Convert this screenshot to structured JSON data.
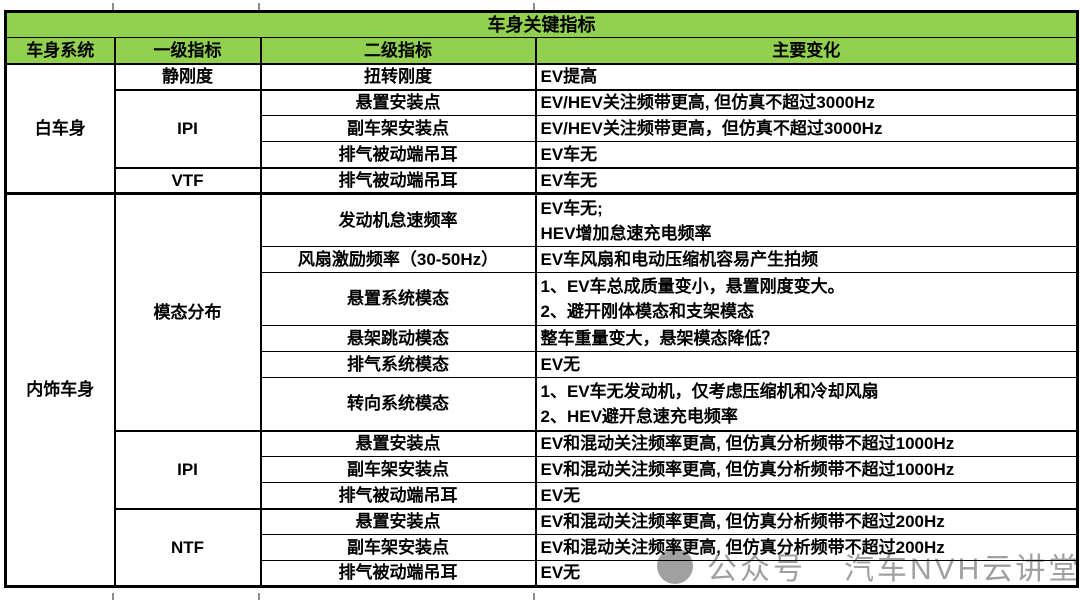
{
  "colors": {
    "header_green": "#92d050",
    "border_black": "#000000",
    "watermark_gray": "#808080"
  },
  "watermark": {
    "icon": "circle-logo",
    "label_1": "公众号",
    "label_2": "汽车NVH云讲堂"
  },
  "chart_data": {
    "type": "table",
    "title": "车身关键指标",
    "columns": [
      "车身系统",
      "一级指标",
      "二级指标",
      "主要变化"
    ],
    "merged_system_groups": [
      {
        "label": "白车身",
        "row_count": 5
      },
      {
        "label": "内饰车身",
        "row_count": 12
      }
    ],
    "merged_level1_groups": [
      {
        "label": "静刚度",
        "row_count": 1
      },
      {
        "label": "IPI",
        "row_count": 3
      },
      {
        "label": "VTF",
        "row_count": 1
      },
      {
        "label": "模态分布",
        "row_count": 6
      },
      {
        "label": "IPI",
        "row_count": 3
      },
      {
        "label": "NTF",
        "row_count": 3
      }
    ],
    "rows": [
      {
        "sys": "白车身",
        "lv1": "静刚度",
        "lv2": "扭转刚度",
        "chg": "EV提高"
      },
      {
        "lv1": "IPI",
        "lv2": "悬置安装点",
        "chg": "EV/HEV关注频带更高, 但仿真不超过3000Hz"
      },
      {
        "lv2": "副车架安装点",
        "chg": "EV/HEV关注频带更高，但仿真不超过3000Hz"
      },
      {
        "lv2": "排气被动端吊耳",
        "chg": "EV车无"
      },
      {
        "lv1": "VTF",
        "lv2": "排气被动端吊耳",
        "chg": "EV车无"
      },
      {
        "sys": "内饰车身",
        "lv1": "模态分布",
        "lv2": "发动机怠速频率",
        "chg": "EV车无;\nHEV增加怠速充电频率"
      },
      {
        "lv2": "风扇激励频率（30-50Hz）",
        "chg": "EV车风扇和电动压缩机容易产生拍频"
      },
      {
        "lv2": "悬置系统模态",
        "chg": "1、EV车总成质量变小，悬置刚度变大。\n2、避开刚体模态和支架模态"
      },
      {
        "lv2": "悬架跳动模态",
        "chg": "整车重量变大，悬架模态降低？"
      },
      {
        "lv2": "排气系统模态",
        "chg": "EV无"
      },
      {
        "lv2": "转向系统模态",
        "chg": "1、EV车无发动机，仅考虑压缩机和冷却风扇\n2、HEV避开怠速充电频率"
      },
      {
        "lv1": "IPI",
        "lv2": "悬置安装点",
        "chg": "EV和混动关注频率更高, 但仿真分析频带不超过1000Hz"
      },
      {
        "lv2": "副车架安装点",
        "chg": "EV和混动关注频率更高, 但仿真分析频带不超过1000Hz"
      },
      {
        "lv2": "排气被动端吊耳",
        "chg": "EV无"
      },
      {
        "lv1": "NTF",
        "lv2": "悬置安装点",
        "chg": "EV和混动关注频率更高, 但仿真分析频带不超过200Hz"
      },
      {
        "lv2": "副车架安装点",
        "chg": "EV和混动关注频率更高, 但仿真分析频带不超过200Hz"
      },
      {
        "lv2": "排气被动端吊耳",
        "chg": "EV无"
      }
    ]
  }
}
